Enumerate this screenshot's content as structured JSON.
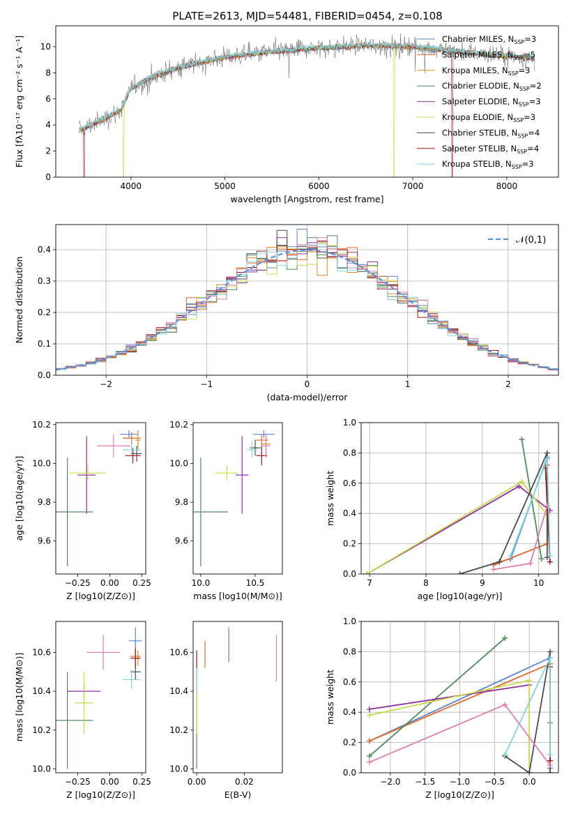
{
  "figure_title": "PLATE=2613, MJD=54481, FIBERID=0454, z=0.108",
  "colors": {
    "chabrier_miles": "#5b84d6",
    "salpeter_miles": "#e0692c",
    "kroupa_miles": "#d98b1b",
    "chabrier_elodie": "#4f8a5b",
    "salpeter_elodie": "#8e2fa0",
    "kroupa_elodie": "#c9d84a",
    "chabrier_stelib": "#4a4a4a",
    "salpeter_stelib": "#a01414",
    "kroupa_stelib": "#7fd6dc",
    "pink": "#e07fae",
    "normal": "#5b8fd6",
    "grid": "#b0b0b0"
  },
  "chart_data": [
    {
      "id": "spectrum",
      "type": "line",
      "title": "PLATE=2613, MJD=54481, FIBERID=0454, z=0.108",
      "xlabel": "wavelength [Angstrom, rest frame]",
      "ylabel": "Flux [fλ10⁻¹⁷ erg cm⁻² s⁻¹ A⁻¹]",
      "xlim": [
        3200,
        8550
      ],
      "ylim": [
        0,
        11.6
      ],
      "xticks": [
        4000,
        5000,
        6000,
        7000,
        8000
      ],
      "yticks": [
        0,
        2,
        4,
        6,
        8,
        10
      ],
      "grid": false,
      "legend_position": "right",
      "legend": [
        "Chabrier MILES, N_SSP=3",
        "Salpeter MILES, N_SSP=5",
        "Kroupa MILES, N_SSP=3",
        "Chabrier ELODIE, N_SSP=2",
        "Salpeter ELODIE, N_SSP=3",
        "Kroupa ELODIE, N_SSP=3",
        "Chabrier STELIB, N_SSP=4",
        "Salpeter STELIB, N_SSP=4",
        "Kroupa STELIB, N_SSP=3"
      ],
      "continuum_x": [
        3450,
        3700,
        3900,
        4000,
        4200,
        4500,
        5000,
        5500,
        6000,
        6500,
        7000,
        7500,
        8000,
        8300
      ],
      "continuum_y": [
        3.6,
        4.4,
        5.2,
        6.8,
        7.6,
        8.4,
        9.2,
        9.6,
        9.9,
        10.1,
        10.0,
        9.6,
        9.3,
        9.1
      ]
    },
    {
      "id": "residuals",
      "type": "histogram",
      "xlabel": "(data-model)/error",
      "ylabel": "Normed distribution",
      "xlim": [
        -2.5,
        2.5
      ],
      "ylim": [
        0,
        0.48
      ],
      "xticks": [
        -2,
        -1,
        0,
        1,
        2
      ],
      "yticks": [
        0.0,
        0.1,
        0.2,
        0.3,
        0.4
      ],
      "grid": true,
      "legend_position": "top-right",
      "legend": [
        "𝒩(0,1)"
      ],
      "bin_width": 0.1
    },
    {
      "id": "age_vs_Z",
      "type": "errorbar",
      "xlabel": "Z [log10(Z/Z⊙)]",
      "ylabel": "age [log10(age/yr)]",
      "xlim": [
        -0.42,
        0.28
      ],
      "ylim": [
        9.43,
        10.21
      ],
      "xticks": [
        -0.25,
        0.0,
        0.25
      ],
      "yticks": [
        9.6,
        9.8,
        10.0,
        10.2
      ],
      "points": [
        {
          "series": "chabrier_miles",
          "x": 0.15,
          "xerr": 0.07,
          "y": 10.15,
          "yerr": 0.02
        },
        {
          "series": "salpeter_miles",
          "x": 0.17,
          "xerr": 0.07,
          "y": 10.13,
          "yerr": 0.03
        },
        {
          "series": "kroupa_miles",
          "x": 0.22,
          "xerr": 0.02,
          "y": 10.12,
          "yerr": 0.05
        },
        {
          "series": "chabrier_elodie",
          "x": -0.33,
          "xerr": 0.2,
          "y": 9.75,
          "yerr": 0.28
        },
        {
          "series": "salpeter_elodie",
          "x": -0.18,
          "xerr": 0.07,
          "y": 9.94,
          "yerr": 0.2
        },
        {
          "series": "kroupa_elodie",
          "x": -0.17,
          "xerr": 0.14,
          "y": 9.95,
          "yerr": 0.04
        },
        {
          "series": "chabrier_stelib",
          "x": 0.21,
          "xerr": 0.04,
          "y": 10.05,
          "yerr": 0.04
        },
        {
          "series": "salpeter_stelib",
          "x": 0.18,
          "xerr": 0.06,
          "y": 10.04,
          "yerr": 0.04
        },
        {
          "series": "kroupa_stelib",
          "x": 0.17,
          "xerr": 0.07,
          "y": 10.07,
          "yerr": 0.03
        },
        {
          "series": "pink",
          "x": 0.03,
          "xerr": 0.13,
          "y": 10.09,
          "yerr": 0.06
        }
      ]
    },
    {
      "id": "age_vs_mass",
      "type": "errorbar",
      "xlabel": "mass [log10(M/M⊙)]",
      "ylabel": "",
      "xlim": [
        9.93,
        10.75
      ],
      "ylim": [
        9.43,
        10.21
      ],
      "xticks": [
        10.0,
        10.5
      ],
      "yticks": [
        9.6,
        9.8,
        10.0,
        10.2
      ],
      "points": [
        {
          "series": "chabrier_miles",
          "x": 10.58,
          "xerr": 0.1,
          "y": 10.15,
          "yerr": 0.02
        },
        {
          "series": "salpeter_miles",
          "x": 10.56,
          "xerr": 0.06,
          "y": 10.12,
          "yerr": 0.03
        },
        {
          "series": "kroupa_miles",
          "x": 10.6,
          "xerr": 0.04,
          "y": 10.1,
          "yerr": 0.04
        },
        {
          "series": "chabrier_elodie",
          "x": 10.0,
          "xerr": 0.25,
          "y": 9.75,
          "yerr": 0.28
        },
        {
          "series": "salpeter_elodie",
          "x": 10.38,
          "xerr": 0.06,
          "y": 9.94,
          "yerr": 0.2
        },
        {
          "series": "kroupa_elodie",
          "x": 10.24,
          "xerr": 0.1,
          "y": 9.95,
          "yerr": 0.04
        },
        {
          "series": "chabrier_stelib",
          "x": 10.5,
          "xerr": 0.05,
          "y": 10.08,
          "yerr": 0.04
        },
        {
          "series": "salpeter_stelib",
          "x": 10.56,
          "xerr": 0.05,
          "y": 10.04,
          "yerr": 0.05
        },
        {
          "series": "kroupa_stelib",
          "x": 10.47,
          "xerr": 0.05,
          "y": 10.07,
          "yerr": 0.04
        },
        {
          "series": "pink",
          "x": 10.6,
          "xerr": 0.04,
          "y": 10.09,
          "yerr": 0.06
        }
      ]
    },
    {
      "id": "massweight_vs_age",
      "type": "line",
      "xlabel": "age [log10(age/yr)]",
      "ylabel": "mass weight",
      "xlim": [
        6.85,
        10.35
      ],
      "ylim": [
        0,
        1.0
      ],
      "xticks": [
        7,
        8,
        9,
        10
      ],
      "yticks": [
        0.0,
        0.2,
        0.4,
        0.6,
        0.8,
        1.0
      ],
      "grid": true,
      "series": [
        {
          "color": "chabrier_miles",
          "x": [
            9.3,
            9.5,
            10.15
          ],
          "y": [
            0.08,
            0.1,
            0.77
          ]
        },
        {
          "color": "salpeter_miles",
          "x": [
            9.2,
            10.15,
            10.15
          ],
          "y": [
            0.06,
            0.2,
            0.72
          ]
        },
        {
          "color": "chabrier_elodie",
          "x": [
            9.7,
            10.05
          ],
          "y": [
            0.89,
            0.1
          ]
        },
        {
          "color": "salpeter_elodie",
          "x": [
            6.95,
            9.65,
            10.2
          ],
          "y": [
            0.0,
            0.58,
            0.42
          ]
        },
        {
          "color": "kroupa_elodie",
          "x": [
            6.95,
            9.7,
            10.15
          ],
          "y": [
            0.0,
            0.61,
            0.39
          ]
        },
        {
          "color": "chabrier_stelib",
          "x": [
            8.6,
            9.3,
            10.15,
            10.15
          ],
          "y": [
            0.0,
            0.08,
            0.8,
            0.11
          ]
        },
        {
          "color": "salpeter_stelib",
          "x": [
            10.12,
            10.2
          ],
          "y": [
            0.7,
            0.08
          ]
        },
        {
          "color": "kroupa_stelib",
          "x": [
            9.5,
            10.15,
            10.2
          ],
          "y": [
            0.12,
            0.76,
            0.12
          ]
        },
        {
          "color": "pink",
          "x": [
            9.2,
            9.85,
            10.15
          ],
          "y": [
            0.03,
            0.07,
            0.45
          ]
        }
      ]
    },
    {
      "id": "mass_vs_Z",
      "type": "errorbar",
      "xlabel": "Z [log10(Z/Z⊙)]",
      "ylabel": "mass [log10(M/M⊙)]",
      "xlim": [
        -0.42,
        0.28
      ],
      "ylim": [
        9.98,
        10.76
      ],
      "xticks": [
        -0.25,
        0.0,
        0.25
      ],
      "yticks": [
        10.0,
        10.2,
        10.4,
        10.6
      ],
      "points": [
        {
          "series": "chabrier_miles",
          "x": 0.2,
          "xerr": 0.05,
          "y": 10.66,
          "yerr": 0.07
        },
        {
          "series": "salpeter_miles",
          "x": 0.2,
          "xerr": 0.04,
          "y": 10.58,
          "yerr": 0.05
        },
        {
          "series": "kroupa_miles",
          "x": 0.22,
          "xerr": 0.02,
          "y": 10.57,
          "yerr": 0.04
        },
        {
          "series": "chabrier_elodie",
          "x": -0.33,
          "xerr": 0.2,
          "y": 10.25,
          "yerr": 0.25
        },
        {
          "series": "salpeter_elodie",
          "x": -0.2,
          "xerr": 0.13,
          "y": 10.4,
          "yerr": 0.04
        },
        {
          "series": "kroupa_elodie",
          "x": -0.2,
          "xerr": 0.07,
          "y": 10.34,
          "yerr": 0.16
        },
        {
          "series": "chabrier_stelib",
          "x": 0.2,
          "xerr": 0.04,
          "y": 10.5,
          "yerr": 0.04
        },
        {
          "series": "salpeter_stelib",
          "x": 0.2,
          "xerr": 0.04,
          "y": 10.57,
          "yerr": 0.05
        },
        {
          "series": "kroupa_stelib",
          "x": 0.17,
          "xerr": 0.07,
          "y": 10.46,
          "yerr": 0.05
        },
        {
          "series": "pink",
          "x": -0.05,
          "xerr": 0.13,
          "y": 10.6,
          "yerr": 0.09
        }
      ]
    },
    {
      "id": "mass_vs_ebv",
      "type": "errorbar",
      "xlabel": "E(B-V)",
      "ylabel": "",
      "xlim": [
        -0.0015,
        0.036
      ],
      "ylim": [
        9.98,
        10.76
      ],
      "xticks": [
        0.0,
        0.02
      ],
      "yticks": [
        10.0,
        10.2,
        10.4,
        10.6
      ],
      "points": [
        {
          "series": "chabrier_miles",
          "x": 0.0135,
          "xerr": 0,
          "y": 10.64,
          "yerr": 0.09
        },
        {
          "series": "salpeter_miles",
          "x": 0.0035,
          "xerr": 0,
          "y": 10.59,
          "yerr": 0.07
        },
        {
          "series": "chabrier_elodie",
          "x": 0.0,
          "xerr": 0,
          "y": 10.25,
          "yerr": 0.25
        },
        {
          "series": "salpeter_elodie",
          "x": 0.0,
          "xerr": 0,
          "y": 10.4,
          "yerr": 0.04
        },
        {
          "series": "kroupa_elodie",
          "x": 0.0,
          "xerr": 0,
          "y": 10.34,
          "yerr": 0.16
        },
        {
          "series": "salpeter_stelib",
          "x": 0.0,
          "xerr": 0,
          "y": 10.55,
          "yerr": 0.06
        },
        {
          "series": "kroupa_stelib",
          "x": 0.0,
          "xerr": 0,
          "y": 10.46,
          "yerr": 0.06
        },
        {
          "series": "pink",
          "x": 0.0335,
          "xerr": 0,
          "y": 10.57,
          "yerr": 0.12
        }
      ]
    },
    {
      "id": "massweight_vs_Z",
      "type": "line",
      "xlabel": "Z [log10(Z/Z⊙)]",
      "ylabel": "mass weight",
      "xlim": [
        -2.42,
        0.42
      ],
      "ylim": [
        0,
        1.0
      ],
      "xticks": [
        -2.0,
        -1.5,
        -1.0,
        -0.5,
        0.0
      ],
      "yticks": [
        0.0,
        0.2,
        0.4,
        0.6,
        0.8,
        1.0
      ],
      "grid": true,
      "series": [
        {
          "color": "chabrier_miles",
          "x": [
            -2.3,
            0.3,
            0.3
          ],
          "y": [
            0.21,
            0.76,
            0.03
          ]
        },
        {
          "color": "salpeter_miles",
          "x": [
            -2.3,
            0.3,
            0.3
          ],
          "y": [
            0.21,
            0.72,
            0.33
          ]
        },
        {
          "color": "chabrier_elodie",
          "x": [
            -2.3,
            -0.35
          ],
          "y": [
            0.11,
            0.89
          ]
        },
        {
          "color": "salpeter_elodie",
          "x": [
            -2.3,
            0.0
          ],
          "y": [
            0.42,
            0.58
          ]
        },
        {
          "color": "kroupa_elodie",
          "x": [
            -2.3,
            0.0,
            0.0
          ],
          "y": [
            0.38,
            0.61,
            0.0
          ]
        },
        {
          "color": "chabrier_stelib",
          "x": [
            -0.35,
            0.0,
            0.3,
            0.3
          ],
          "y": [
            0.11,
            0.0,
            0.8,
            0.0
          ]
        },
        {
          "color": "salpeter_stelib",
          "x": [
            0.3,
            0.3
          ],
          "y": [
            0.7,
            0.08
          ]
        },
        {
          "color": "kroupa_stelib",
          "x": [
            -0.35,
            0.3,
            0.3
          ],
          "y": [
            0.12,
            0.76,
            0.12
          ]
        },
        {
          "color": "pink",
          "x": [
            -2.3,
            -0.35,
            0.3
          ],
          "y": [
            0.07,
            0.45,
            0.05
          ]
        }
      ]
    }
  ]
}
